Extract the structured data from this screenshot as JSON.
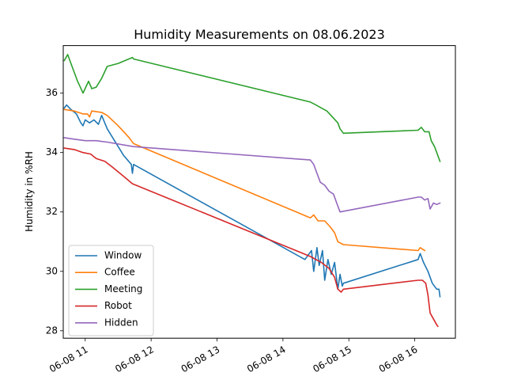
{
  "chart_data": {
    "type": "line",
    "title": "Humidity Measurements on 08.06.2023",
    "xlabel": "",
    "ylabel": "Humidity in %RH",
    "x_unit": "time (HH:MM on 2023-06-08)",
    "xlim": [
      "10:40",
      "16:37"
    ],
    "ylim": [
      27.75,
      37.6
    ],
    "x_ticks": [
      "11:00",
      "12:00",
      "13:00",
      "14:00",
      "15:00",
      "16:00"
    ],
    "x_tick_labels": [
      "06-08 11",
      "06-08 12",
      "06-08 13",
      "06-08 14",
      "06-08 15",
      "06-08 16"
    ],
    "y_ticks": [
      28,
      30,
      32,
      34,
      36
    ],
    "y_tick_labels": [
      "28",
      "30",
      "32",
      "34",
      "36"
    ],
    "grid": false,
    "legend_position": "lower left",
    "series": [
      {
        "name": "Window",
        "color": "#1f77b4",
        "points": [
          [
            "10:41",
            35.5
          ],
          [
            "10:43",
            35.6
          ],
          [
            "10:47",
            35.45
          ],
          [
            "10:52",
            35.3
          ],
          [
            "10:56",
            35.0
          ],
          [
            "10:58",
            34.9
          ],
          [
            "11:00",
            35.1
          ],
          [
            "11:04",
            35.0
          ],
          [
            "11:08",
            35.1
          ],
          [
            "11:12",
            34.95
          ],
          [
            "11:15",
            35.25
          ],
          [
            "11:20",
            34.8
          ],
          [
            "11:35",
            33.9
          ],
          [
            "11:42",
            33.6
          ],
          [
            "11:43",
            33.3
          ],
          [
            "11:44",
            33.6
          ],
          [
            "14:20",
            30.4
          ],
          [
            "14:26",
            30.7
          ],
          [
            "14:28",
            30.0
          ],
          [
            "14:31",
            30.8
          ],
          [
            "14:33",
            30.2
          ],
          [
            "14:36",
            30.7
          ],
          [
            "14:38",
            29.7
          ],
          [
            "14:41",
            30.4
          ],
          [
            "14:44",
            29.9
          ],
          [
            "14:47",
            30.3
          ],
          [
            "14:50",
            29.4
          ],
          [
            "14:52",
            29.9
          ],
          [
            "14:54",
            29.5
          ],
          [
            "14:55",
            29.6
          ],
          [
            "16:03",
            30.4
          ],
          [
            "16:05",
            30.6
          ],
          [
            "16:08",
            30.3
          ],
          [
            "16:12",
            30.0
          ],
          [
            "16:16",
            29.6
          ],
          [
            "16:20",
            29.4
          ],
          [
            "16:22",
            29.4
          ],
          [
            "16:23",
            29.15
          ]
        ]
      },
      {
        "name": "Coffee",
        "color": "#ff7f0e",
        "points": [
          [
            "10:41",
            35.45
          ],
          [
            "10:50",
            35.4
          ],
          [
            "10:58",
            35.3
          ],
          [
            "11:02",
            35.3
          ],
          [
            "11:04",
            35.2
          ],
          [
            "11:06",
            35.4
          ],
          [
            "11:15",
            35.35
          ],
          [
            "11:20",
            35.25
          ],
          [
            "11:30",
            34.9
          ],
          [
            "11:40",
            34.5
          ],
          [
            "11:42",
            34.4
          ],
          [
            "11:44",
            34.3
          ],
          [
            "14:25",
            31.8
          ],
          [
            "14:28",
            31.9
          ],
          [
            "14:32",
            31.7
          ],
          [
            "14:38",
            31.7
          ],
          [
            "14:43",
            31.5
          ],
          [
            "14:47",
            31.3
          ],
          [
            "14:50",
            31.0
          ],
          [
            "14:55",
            30.9
          ],
          [
            "16:03",
            30.7
          ],
          [
            "16:05",
            30.8
          ],
          [
            "16:09",
            30.7
          ]
        ]
      },
      {
        "name": "Meeting",
        "color": "#2ca02c",
        "points": [
          [
            "10:41",
            37.1
          ],
          [
            "10:44",
            37.3
          ],
          [
            "10:48",
            36.9
          ],
          [
            "10:53",
            36.4
          ],
          [
            "10:58",
            36.0
          ],
          [
            "11:03",
            36.4
          ],
          [
            "11:06",
            36.15
          ],
          [
            "11:10",
            36.2
          ],
          [
            "11:15",
            36.5
          ],
          [
            "11:20",
            36.9
          ],
          [
            "11:30",
            37.0
          ],
          [
            "11:43",
            37.2
          ],
          [
            "11:44",
            37.15
          ],
          [
            "14:25",
            35.7
          ],
          [
            "14:30",
            35.6
          ],
          [
            "14:35",
            35.5
          ],
          [
            "14:40",
            35.4
          ],
          [
            "14:45",
            35.2
          ],
          [
            "14:50",
            35.0
          ],
          [
            "14:52",
            34.8
          ],
          [
            "14:55",
            34.65
          ],
          [
            "16:03",
            34.75
          ],
          [
            "16:06",
            34.85
          ],
          [
            "16:09",
            34.7
          ],
          [
            "16:13",
            34.7
          ],
          [
            "16:15",
            34.4
          ],
          [
            "16:18",
            34.2
          ],
          [
            "16:20",
            34.0
          ],
          [
            "16:23",
            33.7
          ]
        ]
      },
      {
        "name": "Robot",
        "color": "#d62728",
        "points": [
          [
            "10:41",
            34.15
          ],
          [
            "10:50",
            34.1
          ],
          [
            "10:58",
            34.0
          ],
          [
            "11:05",
            33.95
          ],
          [
            "11:10",
            33.8
          ],
          [
            "11:18",
            33.7
          ],
          [
            "11:25",
            33.5
          ],
          [
            "11:35",
            33.2
          ],
          [
            "11:43",
            32.95
          ],
          [
            "14:25",
            30.5
          ],
          [
            "14:30",
            30.4
          ],
          [
            "14:35",
            30.3
          ],
          [
            "14:42",
            30.1
          ],
          [
            "14:47",
            29.8
          ],
          [
            "14:50",
            29.4
          ],
          [
            "14:53",
            29.3
          ],
          [
            "14:55",
            29.4
          ],
          [
            "16:03",
            29.7
          ],
          [
            "16:07",
            29.7
          ],
          [
            "16:10",
            29.6
          ],
          [
            "16:12",
            29.2
          ],
          [
            "16:14",
            28.6
          ],
          [
            "16:17",
            28.4
          ],
          [
            "16:20",
            28.2
          ],
          [
            "16:21",
            28.15
          ]
        ]
      },
      {
        "name": "Hidden",
        "color": "#9467bd",
        "points": [
          [
            "10:41",
            34.5
          ],
          [
            "10:50",
            34.45
          ],
          [
            "11:00",
            34.4
          ],
          [
            "11:10",
            34.4
          ],
          [
            "11:20",
            34.35
          ],
          [
            "11:44",
            34.2
          ],
          [
            "14:25",
            33.75
          ],
          [
            "14:28",
            33.6
          ],
          [
            "14:31",
            33.3
          ],
          [
            "14:34",
            33.0
          ],
          [
            "14:38",
            32.9
          ],
          [
            "14:42",
            32.7
          ],
          [
            "14:46",
            32.6
          ],
          [
            "14:49",
            32.3
          ],
          [
            "14:52",
            32.0
          ],
          [
            "16:03",
            32.5
          ],
          [
            "16:06",
            32.5
          ],
          [
            "16:09",
            32.4
          ],
          [
            "16:12",
            32.45
          ],
          [
            "16:14",
            32.1
          ],
          [
            "16:17",
            32.3
          ],
          [
            "16:20",
            32.25
          ],
          [
            "16:23",
            32.3
          ]
        ]
      }
    ]
  }
}
